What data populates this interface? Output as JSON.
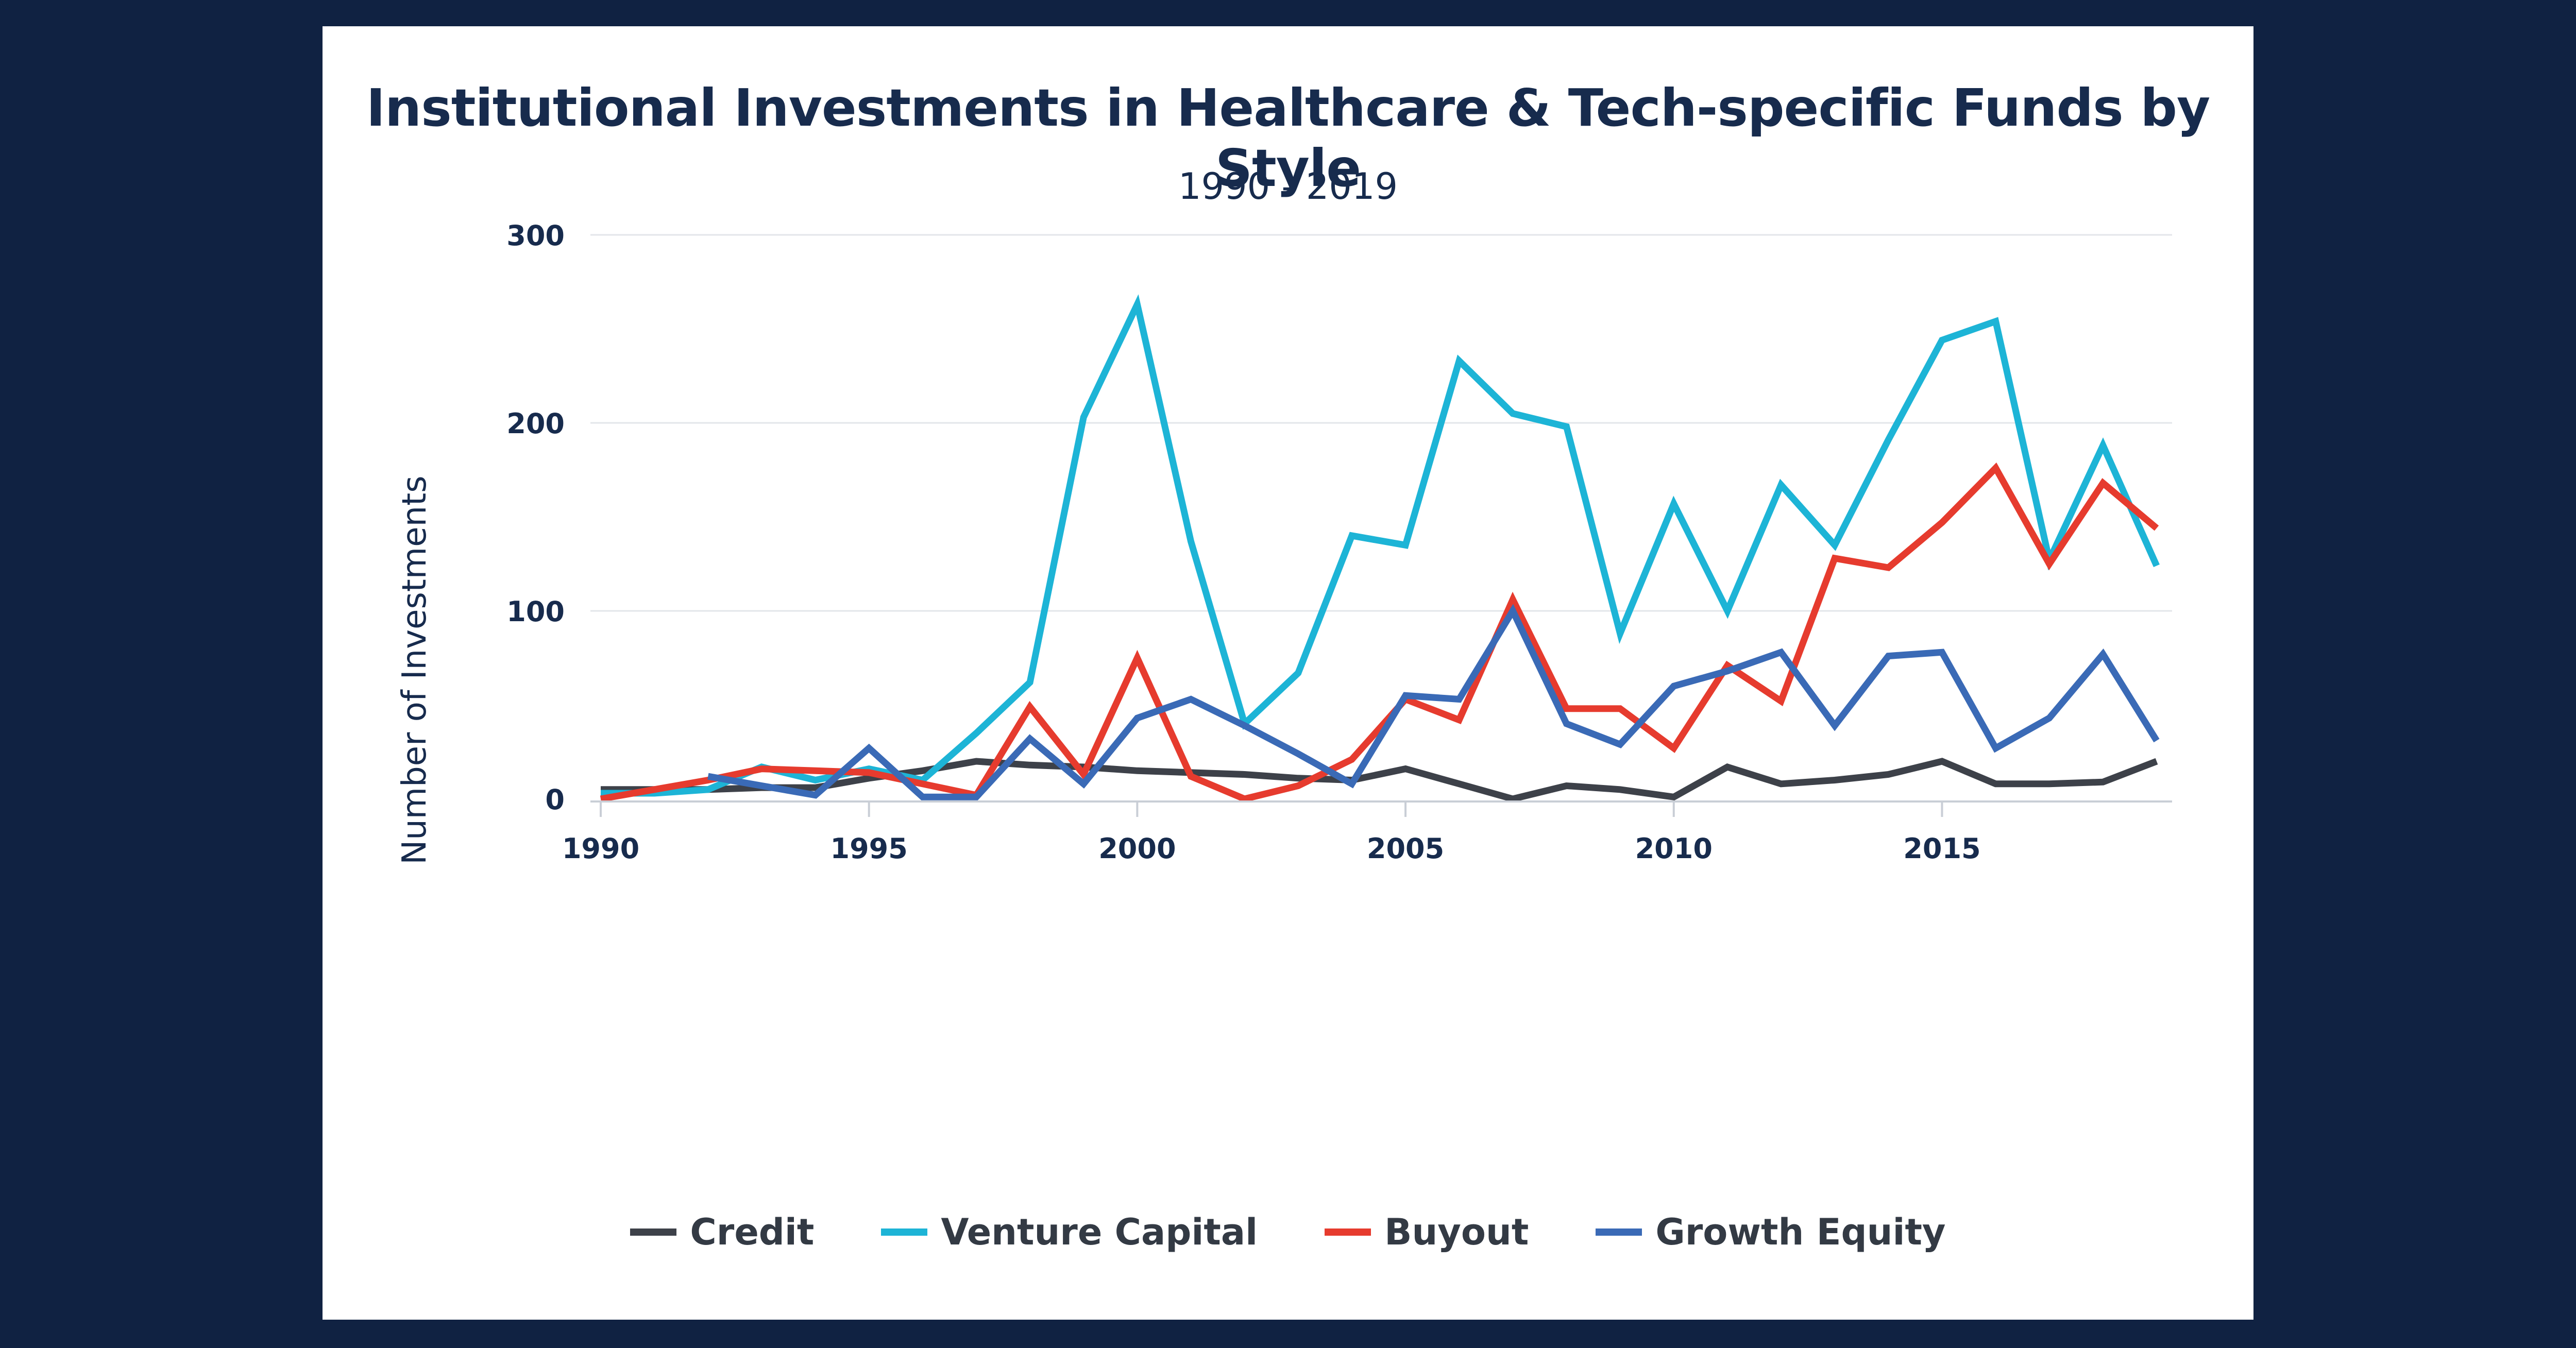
{
  "chart_data": {
    "type": "line",
    "title": "Institutional Investments in Healthcare & Tech-specific Funds by Style",
    "subtitle": "1990 - 2019",
    "ylabel": "Number of Investments",
    "xlabel": "",
    "xlim": [
      1990,
      2019
    ],
    "ylim": [
      0,
      300
    ],
    "x_ticks": [
      1990,
      1995,
      2000,
      2005,
      2010,
      2015
    ],
    "y_ticks": [
      0,
      100,
      200,
      300
    ],
    "grid": "horizontal",
    "legend_position": "bottom",
    "x": [
      1990,
      1991,
      1992,
      1993,
      1994,
      1995,
      1996,
      1997,
      1998,
      1999,
      2000,
      2001,
      2002,
      2003,
      2004,
      2005,
      2006,
      2007,
      2008,
      2009,
      2010,
      2011,
      2012,
      2013,
      2014,
      2015,
      2016,
      2017,
      2018,
      2019
    ],
    "series": [
      {
        "name": "Credit",
        "color": "#3d4149",
        "values": [
          5,
          5,
          5,
          6,
          6,
          11,
          15,
          20,
          18,
          17,
          15,
          14,
          13,
          11,
          10,
          16,
          8,
          0,
          7,
          5,
          1,
          17,
          8,
          10,
          13,
          20,
          8,
          8,
          9,
          20
        ]
      },
      {
        "name": "Venture Capital",
        "color": "#1db4d6",
        "values": [
          3,
          3,
          5,
          17,
          10,
          16,
          10,
          35,
          62,
          203,
          263,
          137,
          40,
          67,
          140,
          135,
          233,
          205,
          198,
          88,
          157,
          100,
          167,
          135,
          191,
          244,
          254,
          127,
          188,
          124
        ]
      },
      {
        "name": "Buyout",
        "color": "#e63b2e",
        "values": [
          0,
          5,
          10,
          16,
          15,
          14,
          8,
          2,
          49,
          13,
          75,
          12,
          0,
          7,
          21,
          53,
          42,
          106,
          48,
          48,
          27,
          71,
          52,
          128,
          123,
          147,
          176,
          125,
          168,
          144
        ]
      },
      {
        "name": "Growth Equity",
        "color": "#3a6ab6",
        "values": [
          null,
          null,
          12,
          7,
          2,
          27,
          1,
          1,
          32,
          8,
          43,
          53,
          39,
          24,
          8,
          55,
          53,
          100,
          40,
          29,
          60,
          68,
          78,
          39,
          76,
          78,
          27,
          43,
          77,
          31
        ]
      }
    ]
  }
}
